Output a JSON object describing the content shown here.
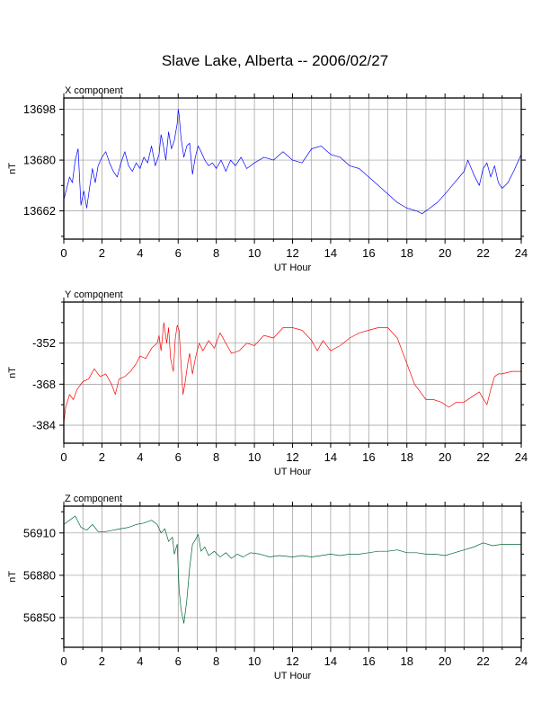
{
  "title": "Slave Lake, Alberta -- 2006/02/27",
  "chart_data": [
    {
      "type": "line",
      "title": "X component",
      "xlabel": "UT Hour",
      "ylabel": "nT",
      "xlim": [
        0,
        24
      ],
      "ylim": [
        13652,
        13702
      ],
      "xticks": [
        0,
        2,
        4,
        6,
        8,
        10,
        12,
        14,
        16,
        18,
        20,
        22,
        24
      ],
      "yticks": [
        13662,
        13680,
        13698
      ],
      "grid": true,
      "series": [
        {
          "color": "#0000ff",
          "x": [
            0,
            0.15,
            0.3,
            0.45,
            0.6,
            0.75,
            0.9,
            1.05,
            1.2,
            1.35,
            1.5,
            1.65,
            1.8,
            2,
            2.2,
            2.4,
            2.6,
            2.8,
            3,
            3.2,
            3.4,
            3.6,
            3.8,
            4,
            4.2,
            4.4,
            4.6,
            4.8,
            5,
            5.1,
            5.2,
            5.35,
            5.5,
            5.65,
            5.8,
            5.95,
            6,
            6.05,
            6.15,
            6.3,
            6.45,
            6.6,
            6.75,
            6.9,
            7.05,
            7.2,
            7.4,
            7.6,
            7.8,
            8,
            8.25,
            8.5,
            8.75,
            9,
            9.3,
            9.6,
            10,
            10.5,
            11,
            11.5,
            12,
            12.5,
            13,
            13.5,
            14,
            14.5,
            15,
            15.5,
            16,
            16.5,
            17,
            17.5,
            18,
            18.5,
            18.8,
            19.2,
            19.6,
            20,
            20.5,
            21,
            21.2,
            21.5,
            21.8,
            22,
            22.2,
            22.4,
            22.6,
            22.8,
            23,
            23.3,
            23.6,
            24
          ],
          "y": [
            13666,
            13670,
            13674,
            13672,
            13680,
            13684,
            13664,
            13669,
            13663,
            13670,
            13677,
            13672,
            13678,
            13681,
            13683,
            13679,
            13676,
            13674,
            13679,
            13683,
            13678,
            13676,
            13679,
            13677,
            13681,
            13679,
            13685,
            13678,
            13682,
            13689,
            13686,
            13680,
            13690,
            13684,
            13687,
            13693,
            13698,
            13696,
            13688,
            13681,
            13685,
            13686,
            13675,
            13681,
            13685,
            13683,
            13680,
            13678,
            13679,
            13677,
            13680,
            13676,
            13680,
            13678,
            13681,
            13677,
            13679,
            13681,
            13680,
            13683,
            13680,
            13679,
            13684,
            13685,
            13682,
            13681,
            13678,
            13677,
            13674,
            13671,
            13668,
            13665,
            13663,
            13662,
            13661,
            13663,
            13665,
            13668,
            13672,
            13676,
            13680,
            13675,
            13671,
            13677,
            13679,
            13674,
            13678,
            13672,
            13670,
            13672,
            13676,
            13682
          ]
        }
      ]
    },
    {
      "type": "line",
      "title": "Y component",
      "xlabel": "UT Hour",
      "ylabel": "nT",
      "xlim": [
        0,
        24
      ],
      "ylim": [
        -391,
        -336
      ],
      "xticks": [
        0,
        2,
        4,
        6,
        8,
        10,
        12,
        14,
        16,
        18,
        20,
        22,
        24
      ],
      "yticks": [
        -352,
        -368,
        -384
      ],
      "grid": true,
      "series": [
        {
          "color": "#ff0000",
          "x": [
            0,
            0.1,
            0.3,
            0.5,
            0.7,
            1,
            1.3,
            1.6,
            1.9,
            2.2,
            2.5,
            2.7,
            2.9,
            3.2,
            3.5,
            3.8,
            4,
            4.3,
            4.6,
            4.9,
            5,
            5.1,
            5.25,
            5.4,
            5.5,
            5.6,
            5.75,
            5.85,
            5.95,
            6.05,
            6.15,
            6.25,
            6.35,
            6.5,
            6.6,
            6.75,
            6.9,
            7.1,
            7.3,
            7.6,
            7.9,
            8.2,
            8.5,
            8.8,
            9.2,
            9.6,
            10,
            10.5,
            11,
            11.5,
            12,
            12.5,
            13,
            13.3,
            13.6,
            14,
            14.5,
            15,
            15.5,
            16,
            16.5,
            17,
            17.5,
            17.8,
            18.1,
            18.4,
            18.7,
            19,
            19.4,
            19.8,
            20.2,
            20.6,
            21,
            21.4,
            21.8,
            22.2,
            22.4,
            22.6,
            22.8,
            23,
            23.5,
            24
          ],
          "y": [
            -383,
            -377,
            -372,
            -374,
            -370,
            -367,
            -366,
            -362,
            -365,
            -364,
            -368,
            -372,
            -366,
            -365,
            -363,
            -360,
            -357,
            -358,
            -354,
            -352,
            -349,
            -355,
            -344,
            -352,
            -346,
            -358,
            -363,
            -350,
            -345,
            -347,
            -360,
            -372,
            -368,
            -360,
            -356,
            -364,
            -358,
            -352,
            -355,
            -351,
            -354,
            -348,
            -352,
            -356,
            -355,
            -352,
            -353,
            -349,
            -350,
            -346,
            -346,
            -347,
            -351,
            -355,
            -351,
            -355,
            -353,
            -350,
            -348,
            -347,
            -346,
            -346,
            -350,
            -356,
            -362,
            -368,
            -371,
            -374,
            -374,
            -375,
            -377,
            -375,
            -375,
            -373,
            -371,
            -376,
            -370,
            -365,
            -364,
            -364,
            -363,
            -363
          ]
        }
      ]
    },
    {
      "type": "line",
      "title": "Z component",
      "xlabel": "UT Hour",
      "ylabel": "nT",
      "xlim": [
        0,
        24
      ],
      "ylim": [
        56829,
        56929
      ],
      "xticks": [
        0,
        2,
        4,
        6,
        8,
        10,
        12,
        14,
        16,
        18,
        20,
        22,
        24
      ],
      "yticks": [
        56910,
        56880,
        56850
      ],
      "grid": true,
      "series": [
        {
          "color": "#006633",
          "x": [
            0,
            0.3,
            0.6,
            0.9,
            1.2,
            1.5,
            1.8,
            2.2,
            2.6,
            3,
            3.4,
            3.8,
            4.2,
            4.6,
            4.9,
            5.1,
            5.3,
            5.5,
            5.7,
            5.8,
            5.95,
            6.05,
            6.15,
            6.3,
            6.45,
            6.6,
            6.75,
            6.9,
            7.05,
            7.2,
            7.4,
            7.6,
            7.9,
            8.2,
            8.5,
            8.8,
            9.1,
            9.4,
            9.8,
            10.3,
            10.8,
            11.3,
            12,
            12.5,
            13,
            13.5,
            14,
            14.5,
            15,
            15.5,
            16,
            16.5,
            17,
            17.5,
            18,
            18.5,
            19,
            19.5,
            20,
            20.5,
            21,
            21.5,
            22,
            22.5,
            23,
            23.5,
            24
          ],
          "y": [
            56916,
            56919,
            56922,
            56914,
            56912,
            56916,
            56911,
            56911,
            56912,
            56913,
            56914,
            56916,
            56917,
            56919,
            56916,
            56910,
            56913,
            56904,
            56907,
            56895,
            56902,
            56870,
            56856,
            56846,
            56862,
            56885,
            56902,
            56905,
            56909,
            56897,
            56900,
            56894,
            56897,
            56893,
            56896,
            56892,
            56895,
            56893,
            56896,
            56895,
            56893,
            56894,
            56893,
            56894,
            56893,
            56894,
            56895,
            56894,
            56895,
            56895,
            56896,
            56897,
            56897,
            56898,
            56896,
            56896,
            56895,
            56895,
            56894,
            56896,
            56898,
            56900,
            56903,
            56901,
            56902,
            56902,
            56902
          ]
        }
      ]
    }
  ]
}
